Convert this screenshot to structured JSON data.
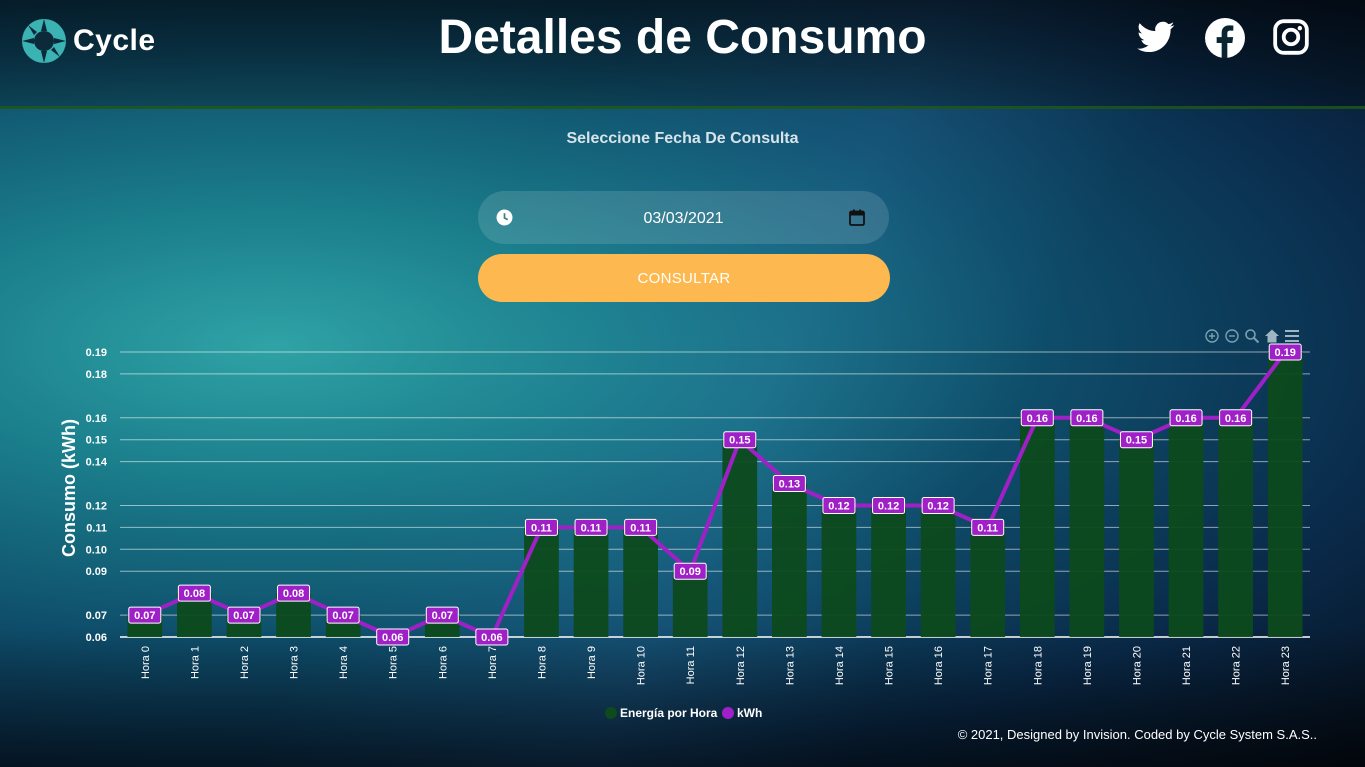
{
  "header": {
    "logo_text": "Cycle",
    "title": "Detalles de Consumo",
    "social": [
      "twitter-icon",
      "facebook-icon",
      "instagram-icon"
    ]
  },
  "form": {
    "subtitle": "Seleccione Fecha De Consulta",
    "date_value": "03/03/2021",
    "button_label": "CONSULTAR"
  },
  "chart_toolbar": [
    "zoom-in-icon",
    "zoom-out-icon",
    "zoom-select-icon",
    "reset-home-icon",
    "menu-icon"
  ],
  "chart_data": {
    "type": "bar",
    "categories": [
      "Hora 0",
      "Hora 1",
      "Hora 2",
      "Hora 3",
      "Hora 4",
      "Hora 5",
      "Hora 6",
      "Hora 7",
      "Hora 8",
      "Hora 9",
      "Hora 10",
      "Hora 11",
      "Hora 12",
      "Hora 13",
      "Hora 14",
      "Hora 15",
      "Hora 16",
      "Hora 17",
      "Hora 18",
      "Hora 19",
      "Hora 20",
      "Hora 21",
      "Hora 22",
      "Hora 23"
    ],
    "series": [
      {
        "name": "Energía por Hora",
        "type": "bar",
        "color": "#0d4a1c",
        "values": [
          0.07,
          0.08,
          0.07,
          0.08,
          0.07,
          0.06,
          0.07,
          0.06,
          0.11,
          0.11,
          0.11,
          0.09,
          0.15,
          0.13,
          0.12,
          0.12,
          0.12,
          0.11,
          0.16,
          0.16,
          0.15,
          0.16,
          0.16,
          0.19
        ]
      },
      {
        "name": "kWh",
        "type": "line",
        "color": "#a020c8",
        "values": [
          0.07,
          0.08,
          0.07,
          0.08,
          0.07,
          0.06,
          0.07,
          0.06,
          0.11,
          0.11,
          0.11,
          0.09,
          0.15,
          0.13,
          0.12,
          0.12,
          0.12,
          0.11,
          0.16,
          0.16,
          0.15,
          0.16,
          0.16,
          0.19
        ]
      }
    ],
    "data_labels": [
      "0.07",
      "0.08",
      "0.07",
      "0.08",
      "0.07",
      "0.06",
      "0.07",
      "0.06",
      "0.11",
      "0.11",
      "0.11",
      "0.09",
      "0.15",
      "0.13",
      "0.12",
      "0.12",
      "0.12",
      "0.11",
      "0.16",
      "0.16",
      "0.15",
      "0.16",
      "0.16",
      "0.19"
    ],
    "y_ticks": [
      "0.06",
      "0.07",
      "0.09",
      "0.10",
      "0.11",
      "0.12",
      "0.14",
      "0.15",
      "0.16",
      "0.18",
      "0.19"
    ],
    "ylabel": "Consumo (kWh)",
    "xlabel": "",
    "ylim": [
      0.06,
      0.19
    ],
    "grid": true,
    "legend_position": "bottom-center"
  },
  "footer": {
    "text": "© 2021, Designed by Invision. Coded by Cycle System S.A.S.."
  }
}
